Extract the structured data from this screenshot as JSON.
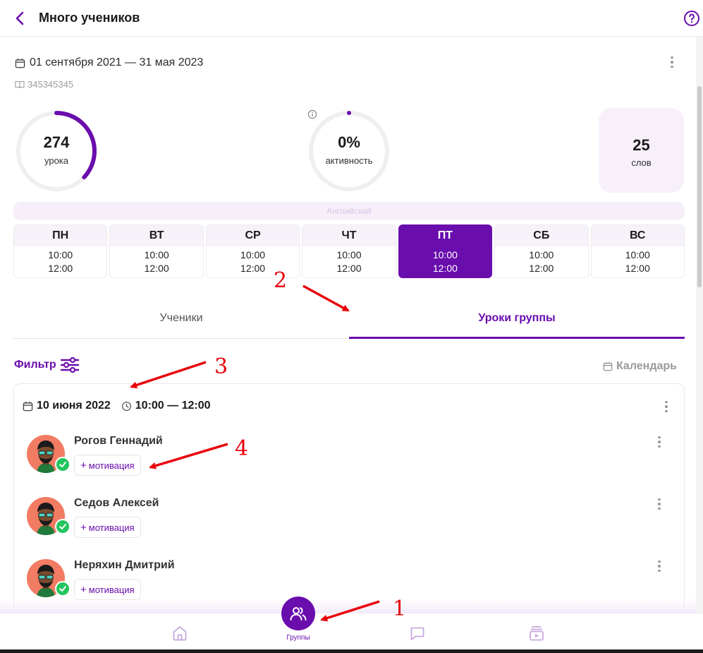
{
  "header": {
    "title": "Много учеников",
    "back_icon": "chevron-left-icon",
    "help_icon": "help-circle-icon"
  },
  "course": {
    "date_range": "01 сентября 2021 — 31 мая 2023",
    "id": "345345345"
  },
  "stats": {
    "lessons": {
      "value": "274",
      "label": "урока",
      "progress": 0.37
    },
    "activity": {
      "value": "0%",
      "label": "активность",
      "progress": 0.0
    },
    "words": {
      "value": "25",
      "label": "слов"
    }
  },
  "language": "Английский",
  "schedule": [
    {
      "day": "ПН",
      "t1": "10:00",
      "t2": "12:00",
      "active": false
    },
    {
      "day": "ВТ",
      "t1": "10:00",
      "t2": "12:00",
      "active": false
    },
    {
      "day": "СР",
      "t1": "10:00",
      "t2": "12:00",
      "active": false
    },
    {
      "day": "ЧТ",
      "t1": "10:00",
      "t2": "12:00",
      "active": false
    },
    {
      "day": "ПТ",
      "t1": "10:00",
      "t2": "12:00",
      "active": true
    },
    {
      "day": "СБ",
      "t1": "10:00",
      "t2": "12:00",
      "active": false
    },
    {
      "day": "ВС",
      "t1": "10:00",
      "t2": "12:00",
      "active": false
    }
  ],
  "tabs": {
    "students": "Ученики",
    "lessons": "Уроки группы",
    "active": "lessons"
  },
  "toolbar": {
    "filter": "Фильтр",
    "calendar": "Календарь"
  },
  "lesson": {
    "date": "10 июня 2022",
    "time": "10:00 — 12:00",
    "students": [
      {
        "name": "Рогов Геннадий",
        "motivation": "мотивация"
      },
      {
        "name": "Седов Алексей",
        "motivation": "мотивация"
      },
      {
        "name": "Неряхин Дмитрий",
        "motivation": "мотивация"
      }
    ]
  },
  "bottom_nav": {
    "active_label": "Группы",
    "items": [
      "home-icon",
      "groups-icon",
      "chat-icon",
      "video-library-icon"
    ]
  },
  "annotations": [
    "1",
    "2",
    "3",
    "4"
  ],
  "colors": {
    "accent": "#6a0dad",
    "success": "#22c55e",
    "annotation": "#e8000b",
    "avatar_bg": "#f27b63"
  }
}
